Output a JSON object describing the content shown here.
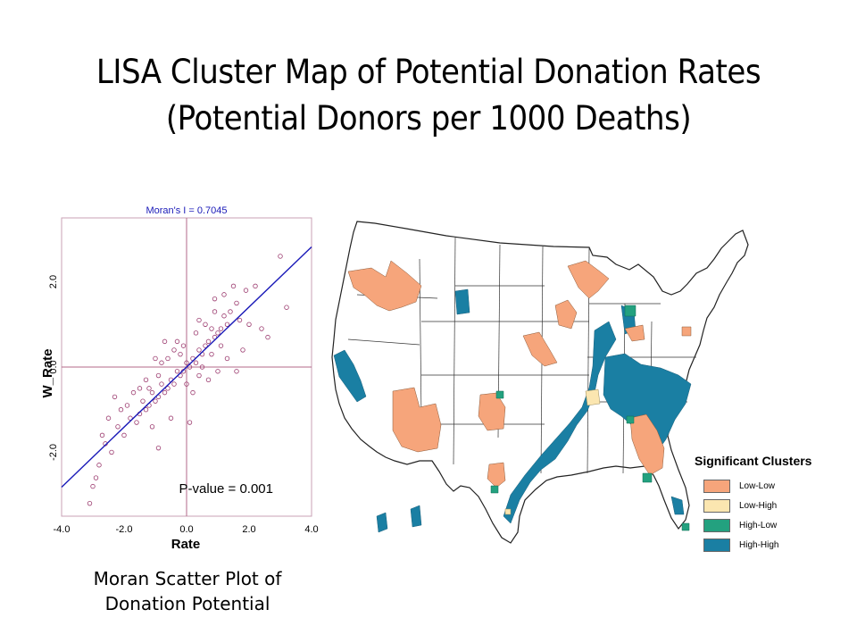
{
  "page": {
    "title_line1": "LISA Cluster Map of Potential Donation Rates",
    "title_line2": "(Potential Donors per 1000 Deaths)",
    "caption_line1": "Moran Scatter Plot of",
    "caption_line2": "Donation Potential"
  },
  "chart_data": [
    {
      "type": "scatter",
      "title": "Moran's I = 0.7045",
      "xlabel": "Rate",
      "ylabel": "W_Rate",
      "xlim": [
        -4.0,
        4.0
      ],
      "ylim": [
        -3.5,
        3.5
      ],
      "x_ticks": [
        "-4.0",
        "-2.0",
        "0.0",
        "2.0",
        "4.0"
      ],
      "y_ticks": [
        "-2.0",
        "0.0",
        "2.0"
      ],
      "annotation": "P-value = 0.001",
      "regression_line": {
        "slope": 0.7045,
        "intercept": 0.0
      },
      "point_color": "#9b3a6e",
      "line_color": "#1a1ab8",
      "axis_line_color": "#b36a8a",
      "x": [
        3.0,
        2.2,
        1.9,
        1.6,
        1.4,
        1.3,
        1.2,
        1.1,
        1.0,
        0.9,
        0.8,
        0.7,
        0.6,
        0.5,
        0.4,
        0.3,
        0.2,
        0.1,
        0.0,
        -0.1,
        -0.2,
        -0.3,
        -0.4,
        -0.5,
        -0.6,
        -0.7,
        -0.8,
        -0.9,
        -1.0,
        -1.1,
        -1.2,
        -1.3,
        -1.4,
        -1.5,
        -1.6,
        -1.8,
        -2.0,
        -2.2,
        -2.4,
        -2.6,
        -2.8,
        -3.0,
        -3.1,
        2.6,
        3.2,
        1.8,
        1.5,
        1.7,
        0.9,
        0.6,
        0.3,
        -0.2,
        -0.6,
        -0.9,
        -1.3,
        -1.7,
        -2.1,
        -2.5,
        0.5,
        0.8,
        1.1,
        -0.4,
        -0.8,
        -1.2,
        0.0,
        0.2,
        0.4,
        -0.1,
        -0.3,
        1.3,
        1.0,
        0.7,
        -1.0,
        -1.5,
        -2.3,
        -2.7,
        0.9,
        0.4,
        -0.5,
        2.0,
        -0.7,
        1.6,
        1.2,
        -1.9,
        -1.1,
        0.1,
        -0.9,
        2.4,
        -2.9
      ],
      "y": [
        2.6,
        1.9,
        1.8,
        1.5,
        1.3,
        1.0,
        1.2,
        0.9,
        0.8,
        0.7,
        0.9,
        0.6,
        0.5,
        0.3,
        0.4,
        0.1,
        0.2,
        0.0,
        0.1,
        -0.1,
        -0.2,
        -0.1,
        -0.4,
        -0.3,
        -0.5,
        -0.6,
        -0.4,
        -0.7,
        -0.8,
        -0.6,
        -0.9,
        -1.0,
        -0.8,
        -1.1,
        -1.3,
        -1.2,
        -1.6,
        -1.4,
        -2.0,
        -1.8,
        -2.3,
        -2.8,
        -3.2,
        0.7,
        1.4,
        0.4,
        1.9,
        1.1,
        1.3,
        1.0,
        0.8,
        0.3,
        0.2,
        -0.2,
        -0.3,
        -0.6,
        -1.0,
        -1.2,
        0.0,
        0.3,
        0.5,
        0.4,
        0.1,
        -0.5,
        -0.4,
        -0.6,
        -0.2,
        0.5,
        0.6,
        0.2,
        -0.1,
        -0.3,
        0.2,
        -0.5,
        -0.7,
        -1.6,
        1.6,
        1.1,
        -1.2,
        1.0,
        0.6,
        -0.1,
        1.7,
        -0.9,
        -1.4,
        -1.3,
        -1.9,
        0.9,
        -2.6
      ]
    },
    {
      "type": "map",
      "title": "Significant Clusters",
      "legend": [
        {
          "label": "Low-Low",
          "color": "#f6a57b"
        },
        {
          "label": "Low-High",
          "color": "#fbe6b0"
        },
        {
          "label": "High-Low",
          "color": "#23a17f"
        },
        {
          "label": "High-High",
          "color": "#1a7fa3"
        }
      ]
    }
  ]
}
